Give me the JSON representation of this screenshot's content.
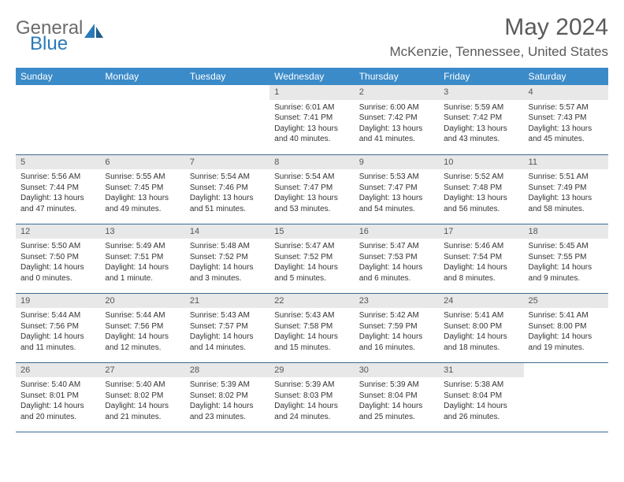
{
  "logo": {
    "part1": "General",
    "part2": "Blue"
  },
  "title": "May 2024",
  "location": "McKenzie, Tennessee, United States",
  "colors": {
    "header_bg": "#3b8bc9",
    "header_text": "#ffffff",
    "daynum_bg": "#e8e8e8",
    "border": "#3b6a94",
    "logo_gray": "#6b6b6b",
    "logo_blue": "#2a7ab9"
  },
  "weekdays": [
    "Sunday",
    "Monday",
    "Tuesday",
    "Wednesday",
    "Thursday",
    "Friday",
    "Saturday"
  ],
  "weeks": [
    [
      {
        "empty": true
      },
      {
        "empty": true
      },
      {
        "empty": true
      },
      {
        "day": "1",
        "sunrise": "Sunrise: 6:01 AM",
        "sunset": "Sunset: 7:41 PM",
        "daylight": "Daylight: 13 hours and 40 minutes."
      },
      {
        "day": "2",
        "sunrise": "Sunrise: 6:00 AM",
        "sunset": "Sunset: 7:42 PM",
        "daylight": "Daylight: 13 hours and 41 minutes."
      },
      {
        "day": "3",
        "sunrise": "Sunrise: 5:59 AM",
        "sunset": "Sunset: 7:42 PM",
        "daylight": "Daylight: 13 hours and 43 minutes."
      },
      {
        "day": "4",
        "sunrise": "Sunrise: 5:57 AM",
        "sunset": "Sunset: 7:43 PM",
        "daylight": "Daylight: 13 hours and 45 minutes."
      }
    ],
    [
      {
        "day": "5",
        "sunrise": "Sunrise: 5:56 AM",
        "sunset": "Sunset: 7:44 PM",
        "daylight": "Daylight: 13 hours and 47 minutes."
      },
      {
        "day": "6",
        "sunrise": "Sunrise: 5:55 AM",
        "sunset": "Sunset: 7:45 PM",
        "daylight": "Daylight: 13 hours and 49 minutes."
      },
      {
        "day": "7",
        "sunrise": "Sunrise: 5:54 AM",
        "sunset": "Sunset: 7:46 PM",
        "daylight": "Daylight: 13 hours and 51 minutes."
      },
      {
        "day": "8",
        "sunrise": "Sunrise: 5:54 AM",
        "sunset": "Sunset: 7:47 PM",
        "daylight": "Daylight: 13 hours and 53 minutes."
      },
      {
        "day": "9",
        "sunrise": "Sunrise: 5:53 AM",
        "sunset": "Sunset: 7:47 PM",
        "daylight": "Daylight: 13 hours and 54 minutes."
      },
      {
        "day": "10",
        "sunrise": "Sunrise: 5:52 AM",
        "sunset": "Sunset: 7:48 PM",
        "daylight": "Daylight: 13 hours and 56 minutes."
      },
      {
        "day": "11",
        "sunrise": "Sunrise: 5:51 AM",
        "sunset": "Sunset: 7:49 PM",
        "daylight": "Daylight: 13 hours and 58 minutes."
      }
    ],
    [
      {
        "day": "12",
        "sunrise": "Sunrise: 5:50 AM",
        "sunset": "Sunset: 7:50 PM",
        "daylight": "Daylight: 14 hours and 0 minutes."
      },
      {
        "day": "13",
        "sunrise": "Sunrise: 5:49 AM",
        "sunset": "Sunset: 7:51 PM",
        "daylight": "Daylight: 14 hours and 1 minute."
      },
      {
        "day": "14",
        "sunrise": "Sunrise: 5:48 AM",
        "sunset": "Sunset: 7:52 PM",
        "daylight": "Daylight: 14 hours and 3 minutes."
      },
      {
        "day": "15",
        "sunrise": "Sunrise: 5:47 AM",
        "sunset": "Sunset: 7:52 PM",
        "daylight": "Daylight: 14 hours and 5 minutes."
      },
      {
        "day": "16",
        "sunrise": "Sunrise: 5:47 AM",
        "sunset": "Sunset: 7:53 PM",
        "daylight": "Daylight: 14 hours and 6 minutes."
      },
      {
        "day": "17",
        "sunrise": "Sunrise: 5:46 AM",
        "sunset": "Sunset: 7:54 PM",
        "daylight": "Daylight: 14 hours and 8 minutes."
      },
      {
        "day": "18",
        "sunrise": "Sunrise: 5:45 AM",
        "sunset": "Sunset: 7:55 PM",
        "daylight": "Daylight: 14 hours and 9 minutes."
      }
    ],
    [
      {
        "day": "19",
        "sunrise": "Sunrise: 5:44 AM",
        "sunset": "Sunset: 7:56 PM",
        "daylight": "Daylight: 14 hours and 11 minutes."
      },
      {
        "day": "20",
        "sunrise": "Sunrise: 5:44 AM",
        "sunset": "Sunset: 7:56 PM",
        "daylight": "Daylight: 14 hours and 12 minutes."
      },
      {
        "day": "21",
        "sunrise": "Sunrise: 5:43 AM",
        "sunset": "Sunset: 7:57 PM",
        "daylight": "Daylight: 14 hours and 14 minutes."
      },
      {
        "day": "22",
        "sunrise": "Sunrise: 5:43 AM",
        "sunset": "Sunset: 7:58 PM",
        "daylight": "Daylight: 14 hours and 15 minutes."
      },
      {
        "day": "23",
        "sunrise": "Sunrise: 5:42 AM",
        "sunset": "Sunset: 7:59 PM",
        "daylight": "Daylight: 14 hours and 16 minutes."
      },
      {
        "day": "24",
        "sunrise": "Sunrise: 5:41 AM",
        "sunset": "Sunset: 8:00 PM",
        "daylight": "Daylight: 14 hours and 18 minutes."
      },
      {
        "day": "25",
        "sunrise": "Sunrise: 5:41 AM",
        "sunset": "Sunset: 8:00 PM",
        "daylight": "Daylight: 14 hours and 19 minutes."
      }
    ],
    [
      {
        "day": "26",
        "sunrise": "Sunrise: 5:40 AM",
        "sunset": "Sunset: 8:01 PM",
        "daylight": "Daylight: 14 hours and 20 minutes."
      },
      {
        "day": "27",
        "sunrise": "Sunrise: 5:40 AM",
        "sunset": "Sunset: 8:02 PM",
        "daylight": "Daylight: 14 hours and 21 minutes."
      },
      {
        "day": "28",
        "sunrise": "Sunrise: 5:39 AM",
        "sunset": "Sunset: 8:02 PM",
        "daylight": "Daylight: 14 hours and 23 minutes."
      },
      {
        "day": "29",
        "sunrise": "Sunrise: 5:39 AM",
        "sunset": "Sunset: 8:03 PM",
        "daylight": "Daylight: 14 hours and 24 minutes."
      },
      {
        "day": "30",
        "sunrise": "Sunrise: 5:39 AM",
        "sunset": "Sunset: 8:04 PM",
        "daylight": "Daylight: 14 hours and 25 minutes."
      },
      {
        "day": "31",
        "sunrise": "Sunrise: 5:38 AM",
        "sunset": "Sunset: 8:04 PM",
        "daylight": "Daylight: 14 hours and 26 minutes."
      },
      {
        "empty": true
      }
    ]
  ]
}
